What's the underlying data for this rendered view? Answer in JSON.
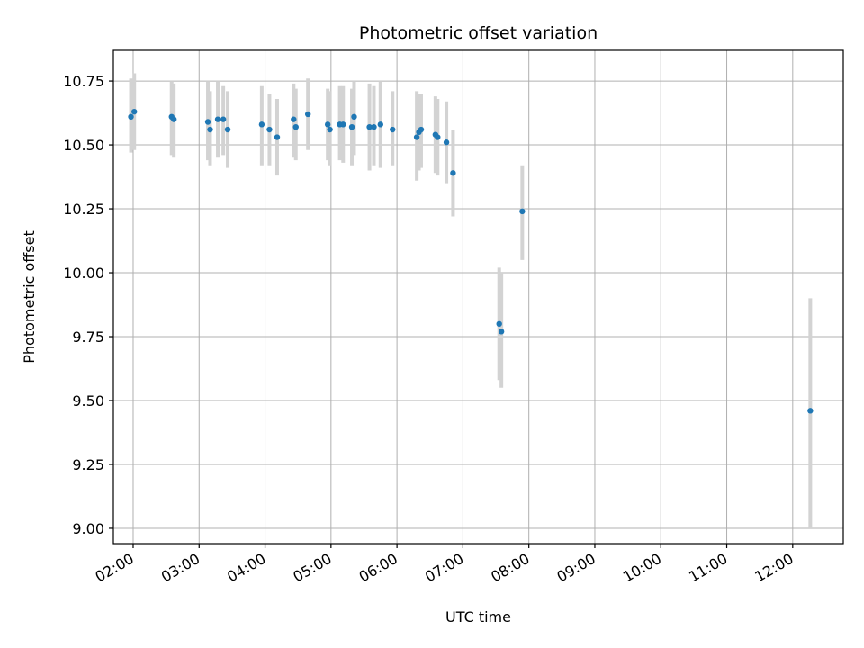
{
  "chart_data": {
    "type": "scatter",
    "title": "Photometric offset variation",
    "xlabel": "UTC time",
    "ylabel": "Photometric offset",
    "x_unit": "hours UTC",
    "xlim": [
      "01:42",
      "12:46"
    ],
    "ylim": [
      8.94,
      10.87
    ],
    "x_ticks": [
      "02:00",
      "03:00",
      "04:00",
      "05:00",
      "06:00",
      "07:00",
      "08:00",
      "09:00",
      "10:00",
      "11:00",
      "12:00"
    ],
    "y_ticks": [
      "9.00",
      "9.25",
      "9.50",
      "9.75",
      "10.00",
      "10.25",
      "10.50",
      "10.75"
    ],
    "grid": true,
    "colors": {
      "point": "#1f77b4",
      "error_bar": "#d3d3d3"
    },
    "series": [
      {
        "points": [
          {
            "x": "01:58",
            "y": 10.61,
            "lo": 10.47,
            "hi": 10.76
          },
          {
            "x": "02:01",
            "y": 10.63,
            "lo": 10.48,
            "hi": 10.78
          },
          {
            "x": "02:35",
            "y": 10.61,
            "lo": 10.46,
            "hi": 10.75
          },
          {
            "x": "02:37",
            "y": 10.6,
            "lo": 10.45,
            "hi": 10.74
          },
          {
            "x": "03:08",
            "y": 10.59,
            "lo": 10.44,
            "hi": 10.75
          },
          {
            "x": "03:10",
            "y": 10.56,
            "lo": 10.42,
            "hi": 10.71
          },
          {
            "x": "03:17",
            "y": 10.6,
            "lo": 10.45,
            "hi": 10.75
          },
          {
            "x": "03:22",
            "y": 10.6,
            "lo": 10.46,
            "hi": 10.73
          },
          {
            "x": "03:26",
            "y": 10.56,
            "lo": 10.41,
            "hi": 10.71
          },
          {
            "x": "03:57",
            "y": 10.58,
            "lo": 10.42,
            "hi": 10.73
          },
          {
            "x": "04:04",
            "y": 10.56,
            "lo": 10.42,
            "hi": 10.7
          },
          {
            "x": "04:11",
            "y": 10.53,
            "lo": 10.38,
            "hi": 10.68
          },
          {
            "x": "04:26",
            "y": 10.6,
            "lo": 10.45,
            "hi": 10.74
          },
          {
            "x": "04:28",
            "y": 10.57,
            "lo": 10.44,
            "hi": 10.72
          },
          {
            "x": "04:39",
            "y": 10.62,
            "lo": 10.48,
            "hi": 10.76
          },
          {
            "x": "04:57",
            "y": 10.58,
            "lo": 10.44,
            "hi": 10.72
          },
          {
            "x": "04:59",
            "y": 10.56,
            "lo": 10.42,
            "hi": 10.71
          },
          {
            "x": "05:08",
            "y": 10.58,
            "lo": 10.44,
            "hi": 10.73
          },
          {
            "x": "05:11",
            "y": 10.58,
            "lo": 10.43,
            "hi": 10.73
          },
          {
            "x": "05:19",
            "y": 10.57,
            "lo": 10.42,
            "hi": 10.72
          },
          {
            "x": "05:21",
            "y": 10.61,
            "lo": 10.46,
            "hi": 10.75
          },
          {
            "x": "05:35",
            "y": 10.57,
            "lo": 10.4,
            "hi": 10.74
          },
          {
            "x": "05:39",
            "y": 10.57,
            "lo": 10.42,
            "hi": 10.73
          },
          {
            "x": "05:45",
            "y": 10.58,
            "lo": 10.41,
            "hi": 10.75
          },
          {
            "x": "05:56",
            "y": 10.56,
            "lo": 10.42,
            "hi": 10.71
          },
          {
            "x": "06:18",
            "y": 10.53,
            "lo": 10.36,
            "hi": 10.71
          },
          {
            "x": "06:20",
            "y": 10.55,
            "lo": 10.4,
            "hi": 10.7
          },
          {
            "x": "06:22",
            "y": 10.56,
            "lo": 10.41,
            "hi": 10.7
          },
          {
            "x": "06:35",
            "y": 10.54,
            "lo": 10.39,
            "hi": 10.69
          },
          {
            "x": "06:37",
            "y": 10.53,
            "lo": 10.38,
            "hi": 10.68
          },
          {
            "x": "06:45",
            "y": 10.51,
            "lo": 10.35,
            "hi": 10.67
          },
          {
            "x": "06:51",
            "y": 10.39,
            "lo": 10.22,
            "hi": 10.56
          },
          {
            "x": "07:33",
            "y": 9.8,
            "lo": 9.58,
            "hi": 10.02
          },
          {
            "x": "07:35",
            "y": 9.77,
            "lo": 9.55,
            "hi": 10.0
          },
          {
            "x": "07:54",
            "y": 10.24,
            "lo": 10.05,
            "hi": 10.42
          },
          {
            "x": "12:16",
            "y": 9.46,
            "lo": 9.0,
            "hi": 9.9
          }
        ]
      }
    ]
  }
}
